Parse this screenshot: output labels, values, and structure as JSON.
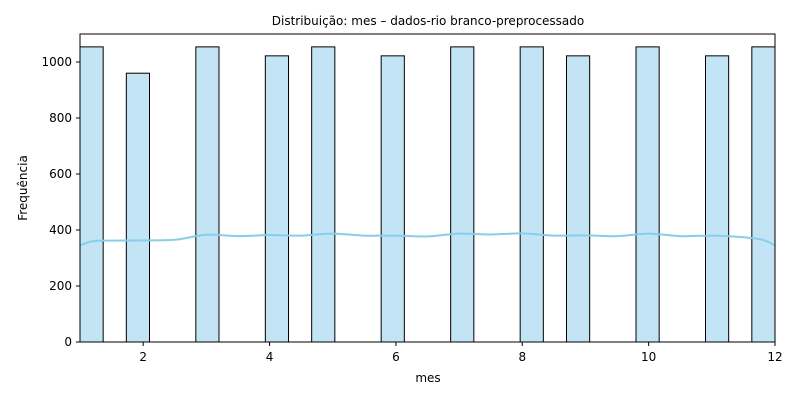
{
  "chart_data": {
    "type": "bar",
    "subtype": "histogram-with-kde",
    "title": "Distribuição: mes – dados-rio branco-preprocessado",
    "xlabel": "mes",
    "ylabel": "Frequência",
    "xlim": [
      1,
      12
    ],
    "ylim": [
      0,
      1100
    ],
    "xticks": [
      2,
      4,
      6,
      8,
      10,
      12
    ],
    "yticks": [
      0,
      200,
      400,
      600,
      800,
      1000
    ],
    "bin_width": 0.3667,
    "bins": [
      {
        "month": 1,
        "x_start": 1.0,
        "value": 1054
      },
      {
        "month": 2,
        "x_start": 1.7333,
        "value": 960
      },
      {
        "month": 3,
        "x_start": 2.8333,
        "value": 1054
      },
      {
        "month": 4,
        "x_start": 3.9333,
        "value": 1022
      },
      {
        "month": 5,
        "x_start": 4.6667,
        "value": 1054
      },
      {
        "month": 6,
        "x_start": 5.7667,
        "value": 1022
      },
      {
        "month": 7,
        "x_start": 6.8667,
        "value": 1054
      },
      {
        "month": 8,
        "x_start": 7.9667,
        "value": 1054
      },
      {
        "month": 9,
        "x_start": 8.7,
        "value": 1022
      },
      {
        "month": 10,
        "x_start": 9.8,
        "value": 1054
      },
      {
        "month": 11,
        "x_start": 10.9,
        "value": 1022
      },
      {
        "month": 12,
        "x_start": 11.6333,
        "value": 1054
      }
    ],
    "kde": {
      "x": [
        1.0,
        1.2,
        1.5,
        2.0,
        2.5,
        3.0,
        3.5,
        4.0,
        4.5,
        5.0,
        5.5,
        6.0,
        6.5,
        7.0,
        7.5,
        8.0,
        8.5,
        9.0,
        9.5,
        10.0,
        10.5,
        11.0,
        11.5,
        11.8,
        12.0
      ],
      "y": [
        345,
        360,
        362,
        363,
        365,
        383,
        378,
        382,
        380,
        387,
        380,
        380,
        377,
        387,
        384,
        388,
        380,
        381,
        378,
        387,
        378,
        380,
        374,
        365,
        345
      ]
    },
    "bar_color": "#c2e4f4",
    "bar_edge_color": "#000000",
    "kde_color": "#87ceeb"
  }
}
